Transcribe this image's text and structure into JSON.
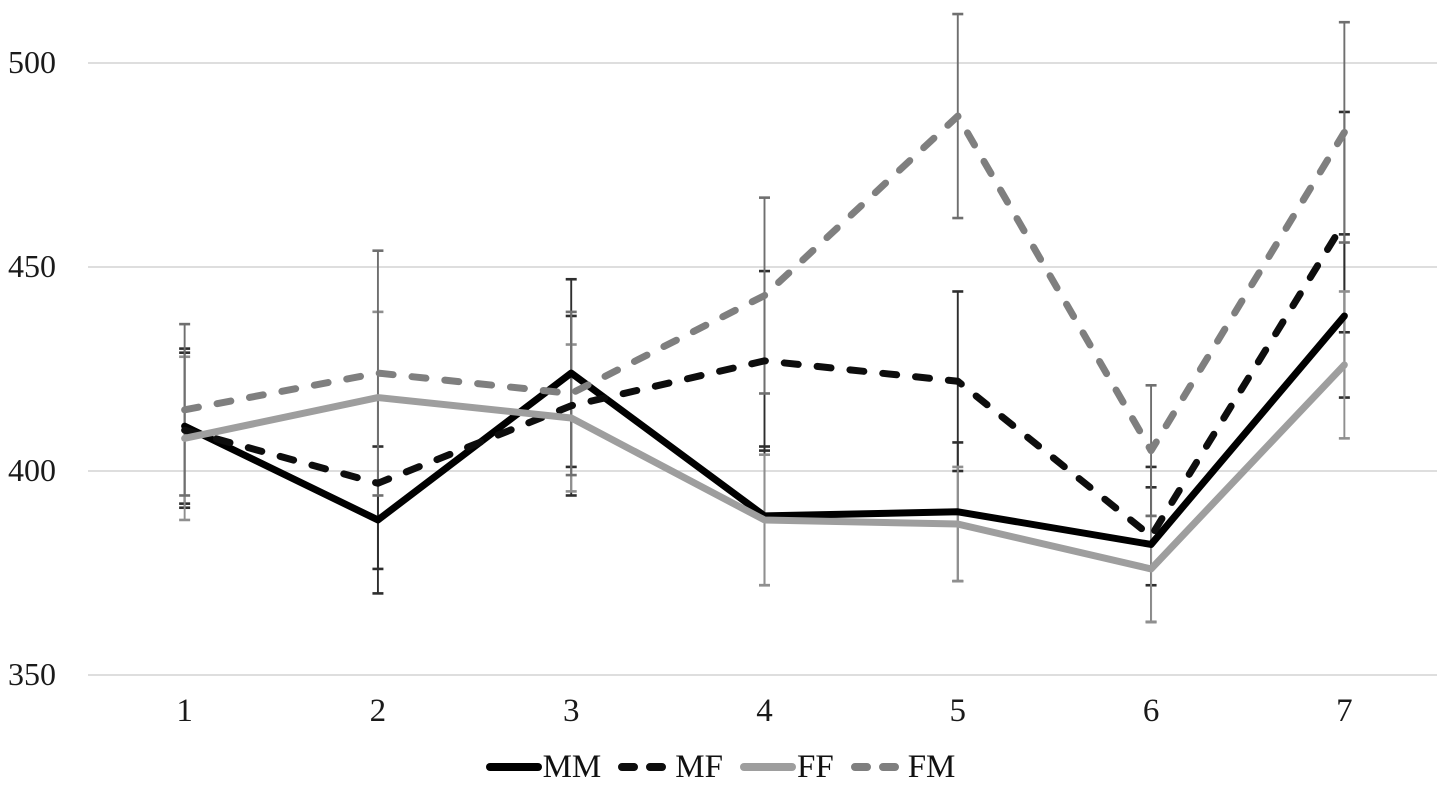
{
  "chart_data": {
    "type": "line",
    "title": "",
    "xlabel": "",
    "ylabel": "",
    "x": [
      "1",
      "2",
      "3",
      "4",
      "5",
      "6",
      "7"
    ],
    "y_ticks": [
      350,
      400,
      450,
      500
    ],
    "ylim": [
      350,
      515
    ],
    "grid": true,
    "legend_position": "bottom",
    "series": [
      {
        "name": "MM",
        "color": "#000000",
        "style": "solid",
        "error_color": "#2e2e2e",
        "values": [
          411,
          388,
          424,
          389,
          390,
          382,
          438
        ],
        "error": [
          19,
          18,
          23,
          17,
          17,
          19,
          20
        ]
      },
      {
        "name": "MF",
        "color": "#0d0d0d",
        "style": "dashed",
        "error_color": "#2e2e2e",
        "values": [
          410,
          397,
          416,
          427,
          422,
          384,
          461
        ],
        "error": [
          19,
          21,
          22,
          22,
          22,
          12,
          27
        ]
      },
      {
        "name": "FF",
        "color": "#9e9e9e",
        "style": "solid",
        "error_color": "#8f8f8f",
        "values": [
          408,
          418,
          413,
          388,
          387,
          376,
          426
        ],
        "error": [
          20,
          21,
          18,
          16,
          14,
          13,
          18
        ]
      },
      {
        "name": "FM",
        "color": "#7f7f7f",
        "style": "dashed",
        "error_color": "#6f6f6f",
        "values": [
          415,
          424,
          419,
          443,
          487,
          405,
          483
        ],
        "error": [
          21,
          30,
          20,
          24,
          25,
          16,
          27
        ]
      }
    ]
  },
  "colors": {
    "gridline": "#d4d4d4",
    "text": "#1a1a1a",
    "background": "#ffffff"
  }
}
